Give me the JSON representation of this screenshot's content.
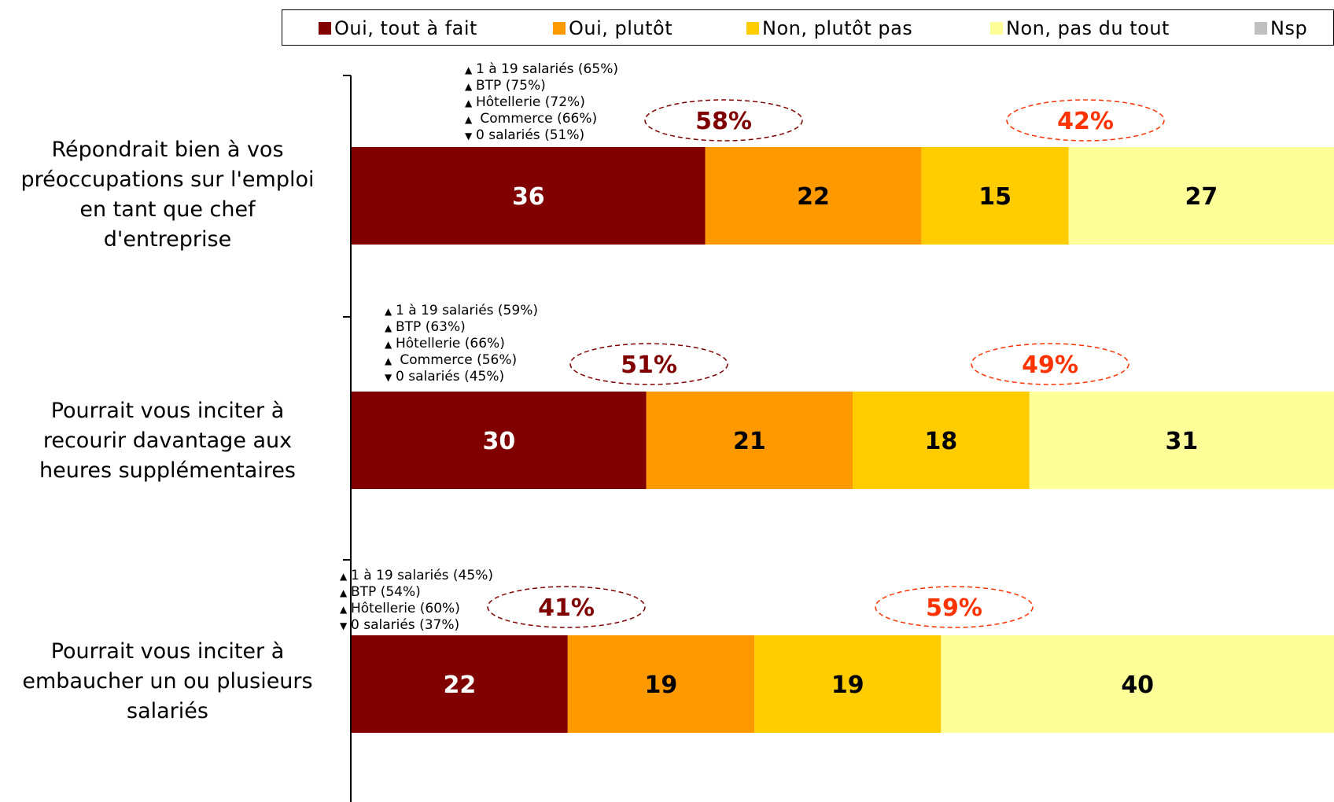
{
  "chart_data": {
    "type": "bar",
    "orientation": "horizontal",
    "stacked": true,
    "series": [
      {
        "name": "Oui, tout à fait",
        "color": "#800000",
        "label_color": "#ffffff",
        "values": [
          36,
          30,
          22
        ]
      },
      {
        "name": "Oui, plutôt",
        "color": "#FF9900",
        "label_color": "#000000",
        "values": [
          22,
          21,
          19
        ]
      },
      {
        "name": "Non, plutôt pas",
        "color": "#FFCC00",
        "label_color": "#000000",
        "values": [
          15,
          18,
          19
        ]
      },
      {
        "name": "Non, pas du tout",
        "color": "#FFFF99",
        "label_color": "#000000",
        "values": [
          27,
          31,
          40
        ]
      },
      {
        "name": "Nsp",
        "color": "#C0C0C0",
        "label_color": "#000000",
        "values": [
          0,
          0,
          0
        ]
      }
    ],
    "categories": [
      "Répondrait bien à vos préoccupations sur l'emploi en tant que chef d'entreprise",
      "Pourrait vous inciter à recourir davantage aux heures supplémentaires",
      "Pourrait vous inciter à embaucher un ou plusieurs salariés"
    ],
    "category_lines": [
      [
        "Répondrait bien à vos",
        "préoccupations sur l'emploi",
        "en tant que chef",
        "d'entreprise"
      ],
      [
        "Pourrait vous inciter à",
        "recourir davantage aux",
        "heures supplémentaires"
      ],
      [
        "Pourrait vous inciter à",
        "embaucher un ou plusieurs",
        "salariés"
      ]
    ],
    "totals": [
      {
        "yes": "58%",
        "no": "42%"
      },
      {
        "yes": "51%",
        "no": "49%"
      },
      {
        "yes": "41%",
        "no": "59%"
      }
    ],
    "total_colors": {
      "yes": "#800000",
      "no": "#FF3300"
    },
    "notes": [
      [
        {
          "dir": "up",
          "text": "1 à 19 salariés (65%)"
        },
        {
          "dir": "up",
          "text": "BTP (75%)"
        },
        {
          "dir": "up",
          "text": "Hôtellerie (72%)"
        },
        {
          "dir": "up",
          "text": " Commerce (66%)"
        },
        {
          "dir": "down",
          "text": "0 salariés (51%)"
        }
      ],
      [
        {
          "dir": "up",
          "text": "1 à 19 salariés (59%)"
        },
        {
          "dir": "up",
          "text": "BTP (63%)"
        },
        {
          "dir": "up",
          "text": "Hôtellerie (66%)"
        },
        {
          "dir": "up",
          "text": " Commerce (56%)"
        },
        {
          "dir": "down",
          "text": "0 salariés (45%)"
        }
      ],
      [
        {
          "dir": "up",
          "text": "1 à 19 salariés (45%)"
        },
        {
          "dir": "up",
          "text": "BTP (54%)"
        },
        {
          "dir": "up",
          "text": "Hôtellerie (60%)"
        },
        {
          "dir": "down",
          "text": "0 salariés (37%)"
        }
      ]
    ],
    "xlim": [
      0,
      100
    ]
  },
  "icons": {
    "up": "▲",
    "down": "▼"
  }
}
